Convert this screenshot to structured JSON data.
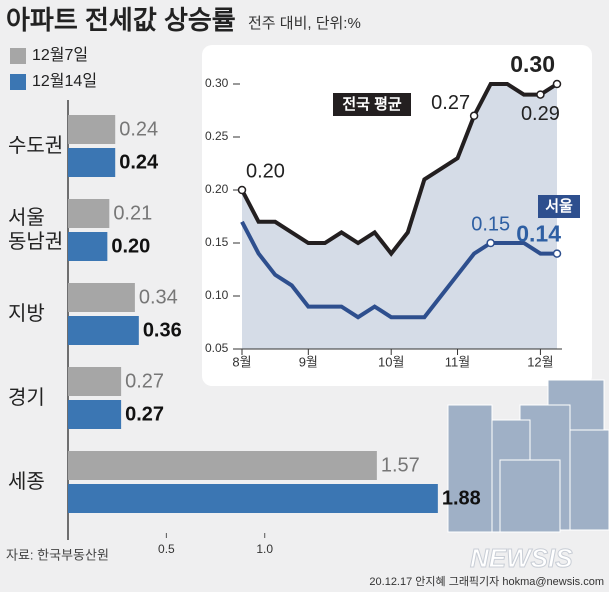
{
  "title": "아파트 전세값 상승률",
  "subtitle": "전주 대비, 단위:%",
  "chart_data": [
    {
      "type": "bar",
      "orientation": "horizontal",
      "categories": [
        "수도권",
        "서울 동남권",
        "지방",
        "경기",
        "세종"
      ],
      "series": [
        {
          "name": "12월7일",
          "color": "#a6a6a6",
          "values": [
            0.24,
            0.21,
            0.34,
            0.27,
            1.57
          ],
          "value_labels": [
            "0.24",
            "0.21",
            "0.34",
            "0.27",
            "1.57"
          ]
        },
        {
          "name": "12월14일",
          "color": "#3b76b3",
          "values": [
            0.24,
            0.2,
            0.36,
            0.27,
            1.88
          ],
          "value_labels": [
            "0.24",
            "0.20",
            "0.36",
            "0.27",
            "1.88"
          ]
        }
      ],
      "xlim": [
        0,
        2.75
      ],
      "xticks": [
        0.5,
        {
          "value": 1,
          "label": "1.0"
        }
      ]
    },
    {
      "type": "line",
      "categories": [
        "8월",
        null,
        null,
        null,
        "9월",
        null,
        null,
        null,
        null,
        "10월",
        null,
        null,
        null,
        "11월",
        null,
        null,
        null,
        null,
        "12월",
        null
      ],
      "series": [
        {
          "name": "전국 평균",
          "color": "#231f20",
          "values": [
            0.2,
            0.17,
            0.17,
            0.16,
            0.15,
            0.15,
            0.16,
            0.15,
            0.16,
            0.14,
            0.16,
            0.21,
            0.22,
            0.23,
            0.27,
            0.3,
            0.3,
            0.29,
            0.29,
            0.3
          ],
          "value_labels": [
            "0.20",
            null,
            null,
            null,
            null,
            null,
            null,
            null,
            null,
            null,
            null,
            null,
            null,
            null,
            "0.27",
            null,
            null,
            null,
            "0.29",
            "0.30"
          ]
        },
        {
          "name": "서울",
          "color": "#2e4f8e",
          "values": [
            0.17,
            0.14,
            0.12,
            0.11,
            0.09,
            0.09,
            0.09,
            0.08,
            0.09,
            0.08,
            0.08,
            0.08,
            0.1,
            0.12,
            0.14,
            0.15,
            0.15,
            0.15,
            0.14,
            0.14
          ],
          "value_labels": [
            null,
            null,
            null,
            null,
            null,
            null,
            null,
            null,
            null,
            null,
            null,
            null,
            null,
            null,
            null,
            "0.15",
            null,
            null,
            null,
            "0.14"
          ]
        }
      ],
      "area_color": "#d5dce7",
      "ylim": [
        0.05,
        0.3
      ],
      "yticks": [
        {
          "value": 0.05,
          "label": "0.05"
        },
        {
          "value": 0.1,
          "label": "0.10"
        },
        {
          "value": 0.15,
          "label": "0.15"
        },
        {
          "value": 0.2,
          "label": "0.20"
        },
        {
          "value": 0.25,
          "label": "0.25"
        },
        {
          "value": 0.3,
          "label": "0.30"
        }
      ]
    }
  ],
  "source": "자료: 한국부동산원",
  "credit": "20.12.17 안지혜 그래픽기자 hokma@newsis.com",
  "logo": "NEWSIS"
}
